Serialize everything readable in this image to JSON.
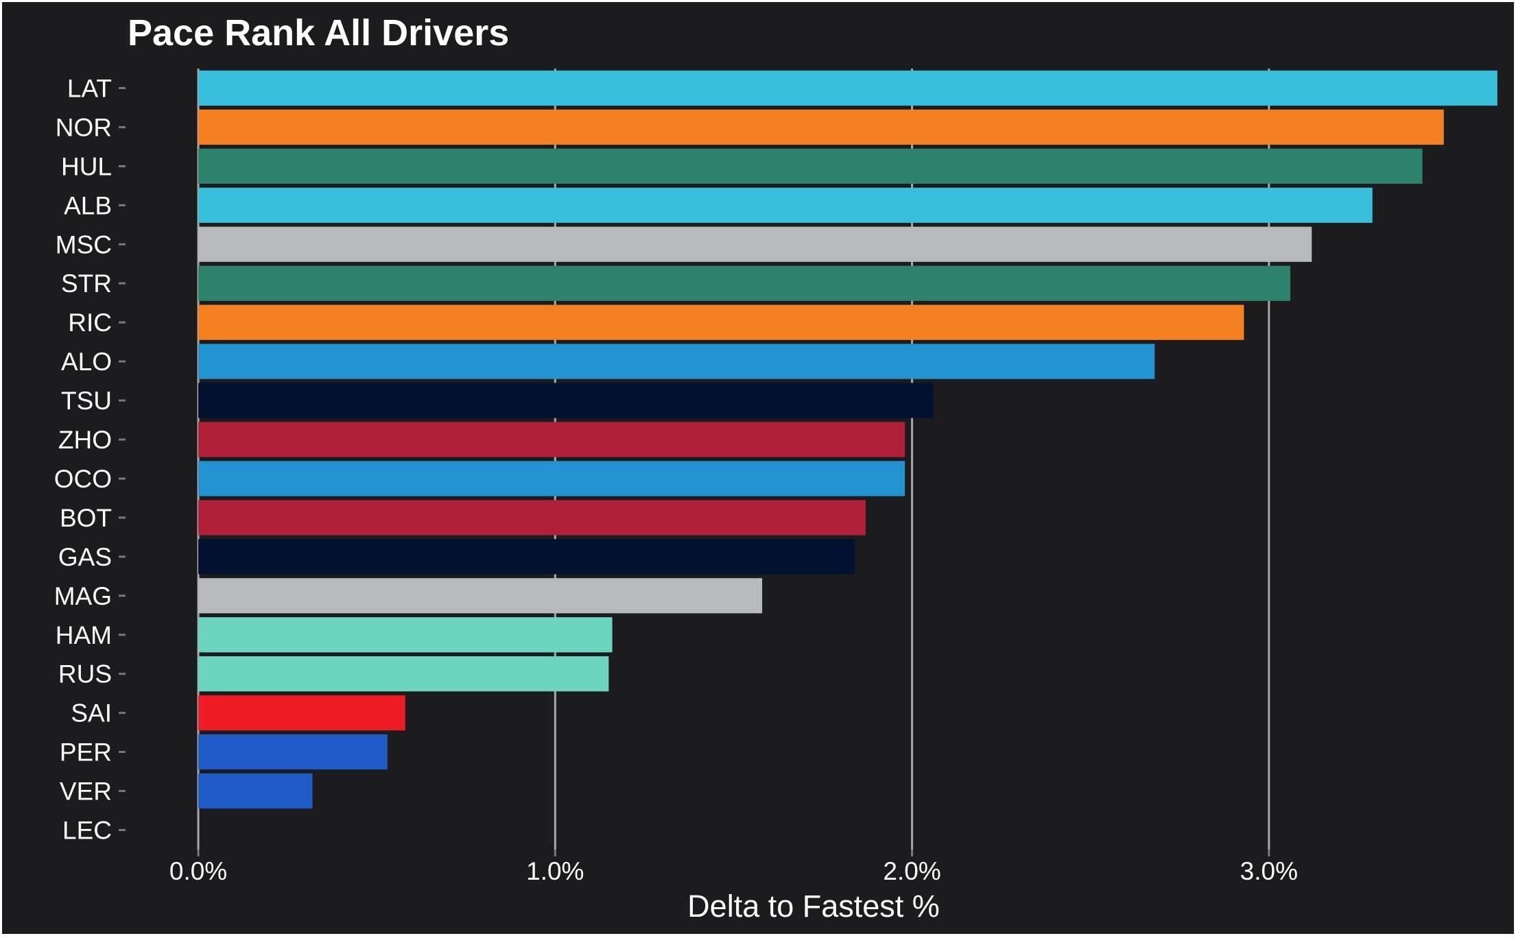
{
  "chart_data": {
    "type": "bar",
    "orientation": "horizontal",
    "title": "Pace Rank All Drivers",
    "xlabel": "Delta to Fastest %",
    "ylabel": "",
    "xlim": [
      -0.2,
      3.65
    ],
    "xticks": [
      {
        "value": 0.0,
        "label": "0.0%"
      },
      {
        "value": 1.0,
        "label": "1.0%"
      },
      {
        "value": 2.0,
        "label": "2.0%"
      },
      {
        "value": 3.0,
        "label": "3.0%"
      }
    ],
    "grid": "vertical major gridlines",
    "categories": [
      "LAT",
      "NOR",
      "HUL",
      "ALB",
      "MSC",
      "STR",
      "RIC",
      "ALO",
      "TSU",
      "ZHO",
      "OCO",
      "BOT",
      "GAS",
      "MAG",
      "HAM",
      "RUS",
      "SAI",
      "PER",
      "VER",
      "LEC"
    ],
    "values": [
      3.64,
      3.49,
      3.43,
      3.29,
      3.12,
      3.06,
      2.93,
      2.68,
      2.06,
      1.98,
      1.98,
      1.87,
      1.84,
      1.58,
      1.16,
      1.15,
      0.58,
      0.53,
      0.32,
      0.0
    ],
    "colors": [
      "#38bfdc",
      "#f58020",
      "#2d826c",
      "#38bfdc",
      "#b6babd",
      "#2d826c",
      "#f58020",
      "#2293d1",
      "#011130",
      "#b12039",
      "#2293d1",
      "#b12039",
      "#011130",
      "#b6babd",
      "#6cd5bf",
      "#6cd5bf",
      "#ed1c24",
      "#1e5bc6",
      "#1e5bc6",
      "#ed1c24"
    ]
  }
}
